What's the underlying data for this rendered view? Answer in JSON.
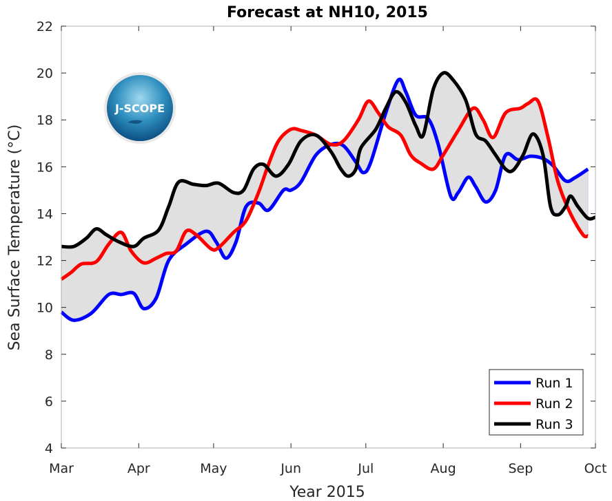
{
  "chart_data": {
    "type": "line",
    "title": "Forecast at NH10, 2015",
    "xlabel": "Year 2015",
    "ylabel": "Sea Surface Temperature (°C)",
    "ylim": [
      4,
      22
    ],
    "yticks": [
      4,
      6,
      8,
      10,
      12,
      14,
      16,
      18,
      20,
      22
    ],
    "xlim": [
      "2015-03-01",
      "2015-10-01"
    ],
    "xticks": [
      {
        "date": "2015-03-01",
        "label": "Mar"
      },
      {
        "date": "2015-04-01",
        "label": "Apr"
      },
      {
        "date": "2015-05-01",
        "label": "May"
      },
      {
        "date": "2015-06-01",
        "label": "Jun"
      },
      {
        "date": "2015-07-01",
        "label": "Jul"
      },
      {
        "date": "2015-08-01",
        "label": "Aug"
      },
      {
        "date": "2015-09-01",
        "label": "Sep"
      },
      {
        "date": "2015-10-01",
        "label": "Oct"
      }
    ],
    "grid": false,
    "legend_position": "bottom-right",
    "envelope_fill": "#e0e0e0",
    "logo_text": "J-SCOPE",
    "series": [
      {
        "name": "Run 1",
        "color": "#0000ff",
        "points": [
          [
            "2015-03-01",
            9.8
          ],
          [
            "2015-03-06",
            9.45
          ],
          [
            "2015-03-13",
            9.75
          ],
          [
            "2015-03-20",
            10.55
          ],
          [
            "2015-03-25",
            10.55
          ],
          [
            "2015-03-30",
            10.6
          ],
          [
            "2015-04-03",
            9.95
          ],
          [
            "2015-04-08",
            10.4
          ],
          [
            "2015-04-13",
            12.0
          ],
          [
            "2015-04-20",
            12.7
          ],
          [
            "2015-04-28",
            13.25
          ],
          [
            "2015-05-02",
            12.8
          ],
          [
            "2015-05-06",
            12.1
          ],
          [
            "2015-05-10",
            12.8
          ],
          [
            "2015-05-14",
            14.3
          ],
          [
            "2015-05-19",
            14.45
          ],
          [
            "2015-05-23",
            14.15
          ],
          [
            "2015-05-29",
            15.0
          ],
          [
            "2015-06-01",
            15.0
          ],
          [
            "2015-06-05",
            15.35
          ],
          [
            "2015-06-11",
            16.5
          ],
          [
            "2015-06-17",
            16.95
          ],
          [
            "2015-06-22",
            16.9
          ],
          [
            "2015-06-27",
            16.2
          ],
          [
            "2015-06-30",
            15.75
          ],
          [
            "2015-07-03",
            16.2
          ],
          [
            "2015-07-09",
            18.3
          ],
          [
            "2015-07-14",
            19.7
          ],
          [
            "2015-07-17",
            19.2
          ],
          [
            "2015-07-21",
            18.2
          ],
          [
            "2015-07-26",
            18.05
          ],
          [
            "2015-07-30",
            16.95
          ],
          [
            "2015-08-04",
            14.75
          ],
          [
            "2015-08-07",
            14.9
          ],
          [
            "2015-08-11",
            15.55
          ],
          [
            "2015-08-14",
            15.15
          ],
          [
            "2015-08-18",
            14.5
          ],
          [
            "2015-08-22",
            15.0
          ],
          [
            "2015-08-26",
            16.5
          ],
          [
            "2015-08-31",
            16.3
          ],
          [
            "2015-09-05",
            16.45
          ],
          [
            "2015-09-10",
            16.35
          ],
          [
            "2015-09-14",
            16.05
          ],
          [
            "2015-09-19",
            15.4
          ],
          [
            "2015-09-23",
            15.55
          ],
          [
            "2015-09-28",
            15.9
          ]
        ]
      },
      {
        "name": "Run 2",
        "color": "#ff0000",
        "points": [
          [
            "2015-03-01",
            11.2
          ],
          [
            "2015-03-05",
            11.5
          ],
          [
            "2015-03-09",
            11.85
          ],
          [
            "2015-03-15",
            11.95
          ],
          [
            "2015-03-20",
            12.7
          ],
          [
            "2015-03-25",
            13.2
          ],
          [
            "2015-03-29",
            12.4
          ],
          [
            "2015-04-03",
            11.9
          ],
          [
            "2015-04-08",
            12.1
          ],
          [
            "2015-04-12",
            12.3
          ],
          [
            "2015-04-16",
            12.4
          ],
          [
            "2015-04-20",
            13.25
          ],
          [
            "2015-04-24",
            13.1
          ],
          [
            "2015-04-30",
            12.5
          ],
          [
            "2015-05-03",
            12.55
          ],
          [
            "2015-05-09",
            13.2
          ],
          [
            "2015-05-14",
            13.7
          ],
          [
            "2015-05-19",
            14.9
          ],
          [
            "2015-05-23",
            16.1
          ],
          [
            "2015-05-27",
            17.1
          ],
          [
            "2015-06-01",
            17.6
          ],
          [
            "2015-06-05",
            17.55
          ],
          [
            "2015-06-11",
            17.35
          ],
          [
            "2015-06-17",
            16.95
          ],
          [
            "2015-06-22",
            17.1
          ],
          [
            "2015-06-28",
            18.0
          ],
          [
            "2015-07-02",
            18.8
          ],
          [
            "2015-07-06",
            18.3
          ],
          [
            "2015-07-10",
            17.7
          ],
          [
            "2015-07-15",
            17.35
          ],
          [
            "2015-07-19",
            16.5
          ],
          [
            "2015-07-23",
            16.15
          ],
          [
            "2015-07-28",
            15.9
          ],
          [
            "2015-08-01",
            16.5
          ],
          [
            "2015-08-07",
            17.55
          ],
          [
            "2015-08-13",
            18.5
          ],
          [
            "2015-08-17",
            18.0
          ],
          [
            "2015-08-21",
            17.25
          ],
          [
            "2015-08-26",
            18.3
          ],
          [
            "2015-09-01",
            18.5
          ],
          [
            "2015-09-04",
            18.7
          ],
          [
            "2015-09-08",
            18.8
          ],
          [
            "2015-09-12",
            17.25
          ],
          [
            "2015-09-16",
            15.35
          ],
          [
            "2015-09-21",
            14.0
          ],
          [
            "2015-09-26",
            13.1
          ],
          [
            "2015-09-28",
            13.05
          ]
        ]
      },
      {
        "name": "Run 3",
        "color": "#000000",
        "points": [
          [
            "2015-03-01",
            12.6
          ],
          [
            "2015-03-06",
            12.6
          ],
          [
            "2015-03-11",
            12.95
          ],
          [
            "2015-03-15",
            13.35
          ],
          [
            "2015-03-19",
            13.1
          ],
          [
            "2015-03-24",
            12.8
          ],
          [
            "2015-03-30",
            12.6
          ],
          [
            "2015-04-03",
            12.95
          ],
          [
            "2015-04-09",
            13.3
          ],
          [
            "2015-04-13",
            14.3
          ],
          [
            "2015-04-17",
            15.35
          ],
          [
            "2015-04-23",
            15.25
          ],
          [
            "2015-04-28",
            15.2
          ],
          [
            "2015-05-03",
            15.3
          ],
          [
            "2015-05-09",
            14.9
          ],
          [
            "2015-05-13",
            15.0
          ],
          [
            "2015-05-17",
            15.9
          ],
          [
            "2015-05-21",
            16.1
          ],
          [
            "2015-05-26",
            15.6
          ],
          [
            "2015-05-31",
            16.1
          ],
          [
            "2015-06-05",
            17.1
          ],
          [
            "2015-06-11",
            17.35
          ],
          [
            "2015-06-17",
            16.65
          ],
          [
            "2015-06-21",
            15.9
          ],
          [
            "2015-06-24",
            15.6
          ],
          [
            "2015-06-27",
            15.9
          ],
          [
            "2015-06-29",
            16.8
          ],
          [
            "2015-07-05",
            17.6
          ],
          [
            "2015-07-09",
            18.5
          ],
          [
            "2015-07-13",
            19.2
          ],
          [
            "2015-07-17",
            18.75
          ],
          [
            "2015-07-21",
            17.75
          ],
          [
            "2015-07-24",
            17.35
          ],
          [
            "2015-07-28",
            19.3
          ],
          [
            "2015-08-01",
            20.0
          ],
          [
            "2015-08-05",
            19.7
          ],
          [
            "2015-08-10",
            18.85
          ],
          [
            "2015-08-14",
            17.4
          ],
          [
            "2015-08-18",
            17.1
          ],
          [
            "2015-08-22",
            16.5
          ],
          [
            "2015-08-26",
            15.9
          ],
          [
            "2015-08-29",
            15.85
          ],
          [
            "2015-09-02",
            16.5
          ],
          [
            "2015-09-06",
            17.4
          ],
          [
            "2015-09-10",
            16.5
          ],
          [
            "2015-09-13",
            14.3
          ],
          [
            "2015-09-16",
            13.95
          ],
          [
            "2015-09-19",
            14.3
          ],
          [
            "2015-09-21",
            14.75
          ],
          [
            "2015-09-24",
            14.3
          ],
          [
            "2015-09-28",
            13.8
          ],
          [
            "2015-10-01",
            13.85
          ]
        ]
      }
    ]
  }
}
